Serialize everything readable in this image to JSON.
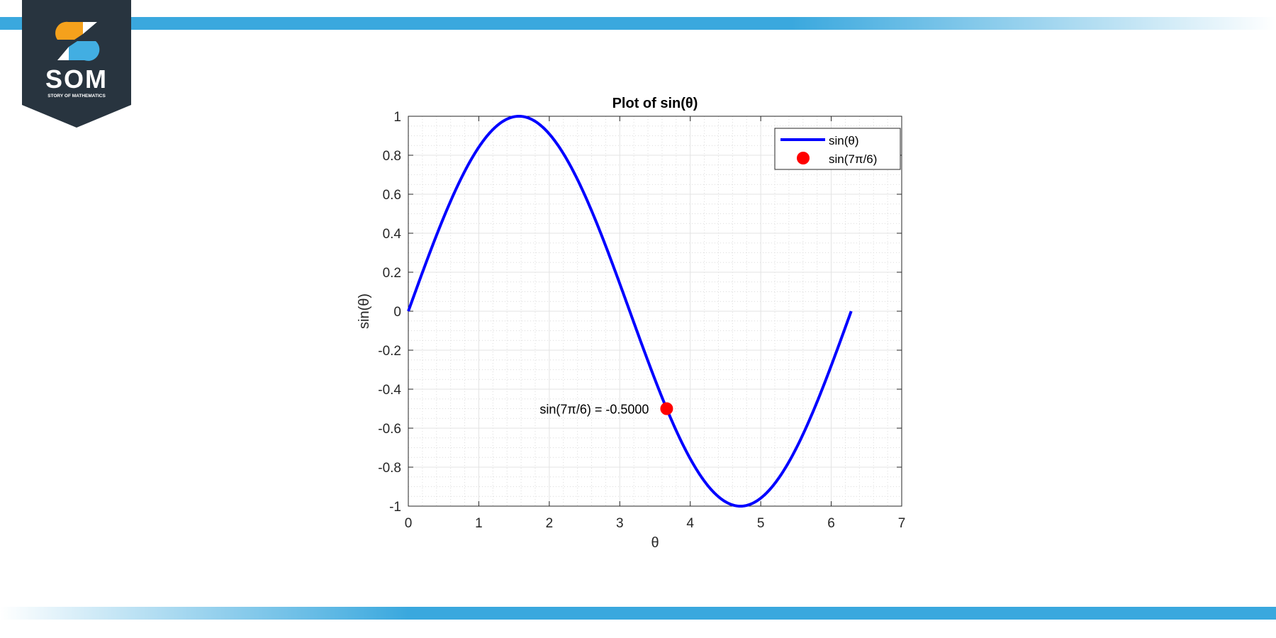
{
  "brand": {
    "name": "SOM",
    "tagline": "STORY OF MATHEMATICS",
    "colors": {
      "badge": "#28343f",
      "orange": "#f5a11c",
      "blue": "#42aee2",
      "white": "#ffffff"
    }
  },
  "chart_data": {
    "type": "line",
    "title": "Plot of sin(θ)",
    "xlabel": "θ",
    "ylabel": "sin(θ)",
    "xlim": [
      0,
      7
    ],
    "ylim": [
      -1,
      1
    ],
    "xticks": [
      0,
      1,
      2,
      3,
      4,
      5,
      6,
      7
    ],
    "yticks": [
      1,
      0.8,
      0.6,
      0.4,
      0.2,
      0,
      -0.2,
      -0.4,
      -0.6,
      -0.8,
      -1
    ],
    "xtick_labels": [
      "0",
      "1",
      "2",
      "3",
      "4",
      "5",
      "6",
      "7"
    ],
    "ytick_labels": [
      "1",
      "0.8",
      "0.6",
      "0.4",
      "0.2",
      "0",
      "-0.2",
      "-0.4",
      "-0.6",
      "-0.8",
      "-1"
    ],
    "grid": true,
    "minor_grid": true,
    "legend_position": "top-right",
    "series": [
      {
        "name": "sin(θ)",
        "kind": "line",
        "function": "sin",
        "x_range": [
          0,
          6.2832
        ],
        "color": "#0000ff"
      },
      {
        "name": "sin(7π/6)",
        "kind": "marker",
        "x": 3.6652,
        "y": -0.5,
        "color": "#ff0000"
      }
    ],
    "annotations": [
      {
        "text": "sin(7π/6) = -0.5000",
        "x": 3.6652,
        "y": -0.5
      }
    ]
  }
}
